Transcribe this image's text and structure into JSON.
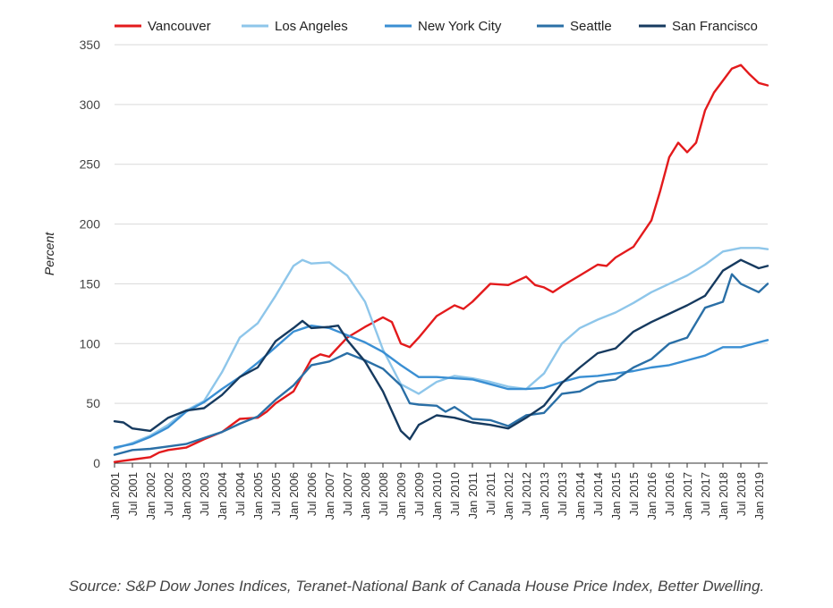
{
  "chart_data": {
    "type": "line",
    "title": "",
    "xlabel": "",
    "ylabel": "Percent",
    "ylim": [
      0,
      350
    ],
    "yticks": [
      0,
      50,
      100,
      150,
      200,
      250,
      300,
      350
    ],
    "grid": true,
    "legend_position": "top",
    "x_tick_labels": [
      "Jan 2001",
      "Jul 2001",
      "Jan 2002",
      "Jul 2002",
      "Jan 2003",
      "Jul 2003",
      "Jan 2004",
      "Jul 2004",
      "Jan 2005",
      "Jul 2005",
      "Jan 2006",
      "Jul 2006",
      "Jan 2007",
      "Jul 2007",
      "Jan 2008",
      "Jul 2008",
      "Jan 2009",
      "Jul 2009",
      "Jan 2010",
      "Jul 2010",
      "Jan 2011",
      "Jul 2011",
      "Jan 2012",
      "Jul 2012",
      "Jan 2013",
      "Jul 2013",
      "Jan 2014",
      "Jul 2014",
      "Jan 2015",
      "Jul 2015",
      "Jan 2016",
      "Jul 2016",
      "Jan 2017",
      "Jul 2017",
      "Jan 2018",
      "Jul 2018",
      "Jan 2019"
    ],
    "series": [
      {
        "name": "Vancouver",
        "color": "#e31a1c",
        "points": [
          [
            "2001-01",
            1
          ],
          [
            "2001-07",
            3
          ],
          [
            "2002-01",
            5
          ],
          [
            "2002-04",
            9
          ],
          [
            "2002-07",
            11
          ],
          [
            "2003-01",
            13
          ],
          [
            "2003-07",
            20
          ],
          [
            "2004-01",
            26
          ],
          [
            "2004-07",
            37
          ],
          [
            "2005-01",
            38
          ],
          [
            "2005-04",
            43
          ],
          [
            "2005-07",
            50
          ],
          [
            "2006-01",
            60
          ],
          [
            "2006-07",
            87
          ],
          [
            "2006-10",
            91
          ],
          [
            "2007-01",
            89
          ],
          [
            "2007-07",
            105
          ],
          [
            "2008-01",
            114
          ],
          [
            "2008-07",
            122
          ],
          [
            "2008-10",
            118
          ],
          [
            "2009-01",
            100
          ],
          [
            "2009-04",
            97
          ],
          [
            "2009-07",
            105
          ],
          [
            "2010-01",
            123
          ],
          [
            "2010-07",
            132
          ],
          [
            "2010-10",
            129
          ],
          [
            "2011-01",
            135
          ],
          [
            "2011-07",
            150
          ],
          [
            "2012-01",
            149
          ],
          [
            "2012-07",
            156
          ],
          [
            "2012-10",
            149
          ],
          [
            "2013-01",
            147
          ],
          [
            "2013-04",
            143
          ],
          [
            "2013-07",
            148
          ],
          [
            "2014-01",
            157
          ],
          [
            "2014-07",
            166
          ],
          [
            "2014-10",
            165
          ],
          [
            "2015-01",
            172
          ],
          [
            "2015-07",
            181
          ],
          [
            "2016-01",
            203
          ],
          [
            "2016-04",
            228
          ],
          [
            "2016-07",
            256
          ],
          [
            "2016-10",
            268
          ],
          [
            "2017-01",
            260
          ],
          [
            "2017-04",
            268
          ],
          [
            "2017-07",
            295
          ],
          [
            "2017-10",
            310
          ],
          [
            "2018-01",
            320
          ],
          [
            "2018-04",
            330
          ],
          [
            "2018-07",
            333
          ],
          [
            "2018-10",
            325
          ],
          [
            "2019-01",
            318
          ],
          [
            "2019-04",
            316
          ]
        ]
      },
      {
        "name": "Los Angeles",
        "color": "#8ec6ea",
        "points": [
          [
            "2001-01",
            12
          ],
          [
            "2001-07",
            17
          ],
          [
            "2002-01",
            23
          ],
          [
            "2002-07",
            32
          ],
          [
            "2003-01",
            44
          ],
          [
            "2003-07",
            52
          ],
          [
            "2004-01",
            76
          ],
          [
            "2004-07",
            105
          ],
          [
            "2005-01",
            117
          ],
          [
            "2005-07",
            140
          ],
          [
            "2006-01",
            165
          ],
          [
            "2006-04",
            170
          ],
          [
            "2006-07",
            167
          ],
          [
            "2007-01",
            168
          ],
          [
            "2007-07",
            157
          ],
          [
            "2008-01",
            135
          ],
          [
            "2008-07",
            95
          ],
          [
            "2009-01",
            66
          ],
          [
            "2009-07",
            58
          ],
          [
            "2010-01",
            68
          ],
          [
            "2010-07",
            73
          ],
          [
            "2011-01",
            71
          ],
          [
            "2011-07",
            68
          ],
          [
            "2012-01",
            64
          ],
          [
            "2012-07",
            62
          ],
          [
            "2013-01",
            75
          ],
          [
            "2013-07",
            100
          ],
          [
            "2014-01",
            113
          ],
          [
            "2014-07",
            120
          ],
          [
            "2015-01",
            126
          ],
          [
            "2015-07",
            134
          ],
          [
            "2016-01",
            143
          ],
          [
            "2016-07",
            150
          ],
          [
            "2017-01",
            157
          ],
          [
            "2017-07",
            166
          ],
          [
            "2018-01",
            177
          ],
          [
            "2018-07",
            180
          ],
          [
            "2019-01",
            180
          ],
          [
            "2019-04",
            179
          ]
        ]
      },
      {
        "name": "New York City",
        "color": "#3a8fd3",
        "points": [
          [
            "2001-01",
            13
          ],
          [
            "2001-07",
            16
          ],
          [
            "2002-01",
            22
          ],
          [
            "2002-07",
            30
          ],
          [
            "2003-01",
            43
          ],
          [
            "2003-07",
            51
          ],
          [
            "2004-01",
            62
          ],
          [
            "2004-07",
            72
          ],
          [
            "2005-01",
            84
          ],
          [
            "2005-07",
            97
          ],
          [
            "2006-01",
            110
          ],
          [
            "2006-07",
            115
          ],
          [
            "2007-01",
            113
          ],
          [
            "2007-07",
            107
          ],
          [
            "2008-01",
            101
          ],
          [
            "2008-07",
            93
          ],
          [
            "2009-01",
            82
          ],
          [
            "2009-07",
            72
          ],
          [
            "2010-01",
            72
          ],
          [
            "2010-07",
            71
          ],
          [
            "2011-01",
            70
          ],
          [
            "2011-07",
            66
          ],
          [
            "2012-01",
            62
          ],
          [
            "2012-07",
            62
          ],
          [
            "2013-01",
            63
          ],
          [
            "2013-07",
            68
          ],
          [
            "2014-01",
            72
          ],
          [
            "2014-07",
            73
          ],
          [
            "2015-01",
            75
          ],
          [
            "2015-07",
            77
          ],
          [
            "2016-01",
            80
          ],
          [
            "2016-07",
            82
          ],
          [
            "2017-01",
            86
          ],
          [
            "2017-07",
            90
          ],
          [
            "2018-01",
            97
          ],
          [
            "2018-07",
            97
          ],
          [
            "2019-01",
            101
          ],
          [
            "2019-04",
            103
          ]
        ]
      },
      {
        "name": "Seattle",
        "color": "#2a6fa6",
        "points": [
          [
            "2001-01",
            7
          ],
          [
            "2001-07",
            11
          ],
          [
            "2002-01",
            12
          ],
          [
            "2002-07",
            14
          ],
          [
            "2003-01",
            16
          ],
          [
            "2003-07",
            21
          ],
          [
            "2004-01",
            26
          ],
          [
            "2004-07",
            33
          ],
          [
            "2005-01",
            39
          ],
          [
            "2005-07",
            53
          ],
          [
            "2006-01",
            65
          ],
          [
            "2006-07",
            82
          ],
          [
            "2007-01",
            85
          ],
          [
            "2007-07",
            92
          ],
          [
            "2008-01",
            86
          ],
          [
            "2008-07",
            79
          ],
          [
            "2009-01",
            65
          ],
          [
            "2009-04",
            50
          ],
          [
            "2009-07",
            49
          ],
          [
            "2010-01",
            48
          ],
          [
            "2010-04",
            43
          ],
          [
            "2010-07",
            47
          ],
          [
            "2011-01",
            37
          ],
          [
            "2011-07",
            36
          ],
          [
            "2012-01",
            31
          ],
          [
            "2012-07",
            40
          ],
          [
            "2013-01",
            42
          ],
          [
            "2013-07",
            58
          ],
          [
            "2014-01",
            60
          ],
          [
            "2014-07",
            68
          ],
          [
            "2015-01",
            70
          ],
          [
            "2015-07",
            80
          ],
          [
            "2016-01",
            87
          ],
          [
            "2016-07",
            100
          ],
          [
            "2017-01",
            105
          ],
          [
            "2017-07",
            130
          ],
          [
            "2018-01",
            135
          ],
          [
            "2018-04",
            158
          ],
          [
            "2018-07",
            150
          ],
          [
            "2019-01",
            143
          ],
          [
            "2019-04",
            150
          ]
        ]
      },
      {
        "name": "San Francisco",
        "color": "#163a5f",
        "points": [
          [
            "2001-01",
            35
          ],
          [
            "2001-04",
            34
          ],
          [
            "2001-07",
            29
          ],
          [
            "2002-01",
            27
          ],
          [
            "2002-07",
            38
          ],
          [
            "2003-01",
            44
          ],
          [
            "2003-07",
            46
          ],
          [
            "2004-01",
            57
          ],
          [
            "2004-07",
            72
          ],
          [
            "2005-01",
            80
          ],
          [
            "2005-07",
            102
          ],
          [
            "2006-01",
            113
          ],
          [
            "2006-04",
            119
          ],
          [
            "2006-07",
            113
          ],
          [
            "2007-01",
            114
          ],
          [
            "2007-04",
            115
          ],
          [
            "2007-07",
            103
          ],
          [
            "2008-01",
            85
          ],
          [
            "2008-07",
            60
          ],
          [
            "2009-01",
            27
          ],
          [
            "2009-04",
            20
          ],
          [
            "2009-07",
            32
          ],
          [
            "2010-01",
            40
          ],
          [
            "2010-07",
            38
          ],
          [
            "2011-01",
            34
          ],
          [
            "2011-07",
            32
          ],
          [
            "2012-01",
            29
          ],
          [
            "2012-07",
            38
          ],
          [
            "2013-01",
            48
          ],
          [
            "2013-07",
            67
          ],
          [
            "2014-01",
            80
          ],
          [
            "2014-07",
            92
          ],
          [
            "2015-01",
            96
          ],
          [
            "2015-07",
            110
          ],
          [
            "2016-01",
            118
          ],
          [
            "2016-07",
            125
          ],
          [
            "2017-01",
            132
          ],
          [
            "2017-07",
            140
          ],
          [
            "2018-01",
            161
          ],
          [
            "2018-07",
            170
          ],
          [
            "2019-01",
            163
          ],
          [
            "2019-04",
            165
          ]
        ]
      }
    ],
    "source": "Source: S&P Dow Jones Indices, Teranet-National Bank of Canada House Price Index, Better Dwelling."
  }
}
